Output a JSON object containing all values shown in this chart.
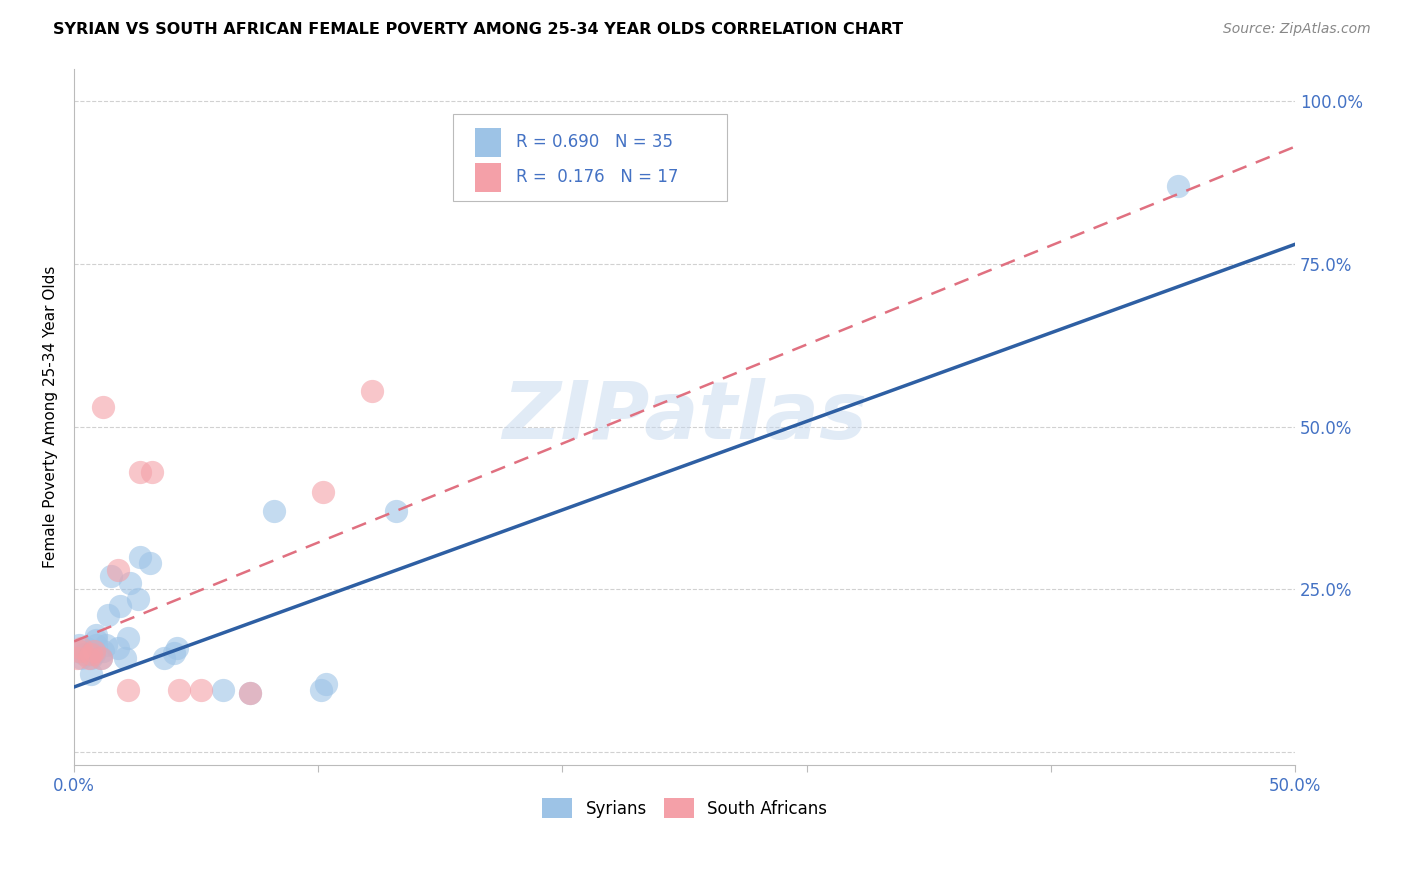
{
  "title": "SYRIAN VS SOUTH AFRICAN FEMALE POVERTY AMONG 25-34 YEAR OLDS CORRELATION CHART",
  "source": "Source: ZipAtlas.com",
  "ylabel_label": "Female Poverty Among 25-34 Year Olds",
  "xlim": [
    0.0,
    0.5
  ],
  "ylim": [
    -0.02,
    1.05
  ],
  "xticks": [
    0.0,
    0.1,
    0.2,
    0.3,
    0.4,
    0.5
  ],
  "xtick_labels": [
    "0.0%",
    "",
    "",
    "",
    "",
    "50.0%"
  ],
  "yticks": [
    0.0,
    0.25,
    0.5,
    0.75,
    1.0
  ],
  "ytick_labels": [
    "",
    "25.0%",
    "50.0%",
    "75.0%",
    "100.0%"
  ],
  "axis_color": "#4472C4",
  "grid_color": "#cccccc",
  "watermark": "ZIPatlas",
  "legend_R_syrian": "0.690",
  "legend_N_syrian": "35",
  "legend_R_southafrican": "0.176",
  "legend_N_southafrican": "17",
  "syrian_color": "#9DC3E6",
  "south_african_color": "#F4A0A8",
  "syrian_line_color": "#2E5FA3",
  "south_african_line_color": "#E07080",
  "syrian_line_x0": 0.0,
  "syrian_line_y0": 0.1,
  "syrian_line_x1": 0.5,
  "syrian_line_y1": 0.78,
  "sa_line_x0": 0.0,
  "sa_line_y0": 0.17,
  "sa_line_x1": 0.5,
  "sa_line_y1": 0.93,
  "syrian_points_x": [
    0.002,
    0.002,
    0.003,
    0.004,
    0.005,
    0.007,
    0.007,
    0.008,
    0.008,
    0.009,
    0.009,
    0.009,
    0.011,
    0.012,
    0.013,
    0.014,
    0.015,
    0.018,
    0.019,
    0.021,
    0.022,
    0.023,
    0.026,
    0.027,
    0.031,
    0.037,
    0.041,
    0.042,
    0.061,
    0.072,
    0.082,
    0.101,
    0.103,
    0.132,
    0.452
  ],
  "syrian_points_y": [
    0.155,
    0.165,
    0.145,
    0.15,
    0.16,
    0.12,
    0.145,
    0.15,
    0.155,
    0.165,
    0.172,
    0.18,
    0.145,
    0.155,
    0.165,
    0.21,
    0.27,
    0.16,
    0.225,
    0.145,
    0.175,
    0.26,
    0.235,
    0.3,
    0.29,
    0.145,
    0.152,
    0.16,
    0.095,
    0.09,
    0.37,
    0.095,
    0.105,
    0.37,
    0.87
  ],
  "south_african_points_x": [
    0.001,
    0.002,
    0.003,
    0.006,
    0.007,
    0.008,
    0.011,
    0.012,
    0.018,
    0.022,
    0.027,
    0.032,
    0.043,
    0.052,
    0.072,
    0.102,
    0.122
  ],
  "south_african_points_y": [
    0.145,
    0.155,
    0.16,
    0.145,
    0.15,
    0.155,
    0.145,
    0.53,
    0.28,
    0.095,
    0.43,
    0.43,
    0.095,
    0.095,
    0.09,
    0.4,
    0.555
  ]
}
